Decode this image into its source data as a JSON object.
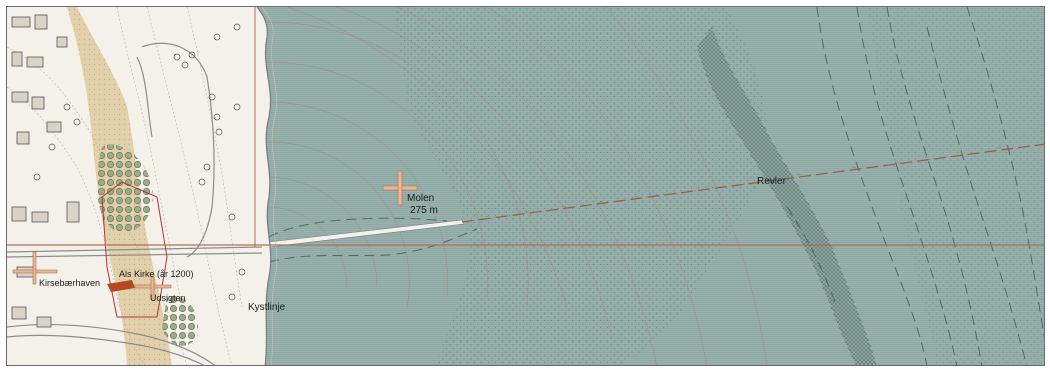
{
  "map": {
    "labels": {
      "molen_name": "Molen",
      "molen_length": "275 m",
      "revler": "Revler",
      "kystlinje": "Kystlinje",
      "church": "Als Kirke (år 1200)",
      "kirsebaerhaven": "Kirsebærhaven",
      "udsigten": "Udsigten"
    },
    "colors": {
      "sea": "#8fa9a4",
      "land": "#f4f1ea",
      "dune": "#d8c39c",
      "profile_line": "#b0705a",
      "contour": "#a0826f",
      "marker": "#e8b890",
      "church_roof": "#b54a1e"
    },
    "icons": [
      "cross-marker-icon",
      "tree-icon",
      "building-icon"
    ]
  }
}
